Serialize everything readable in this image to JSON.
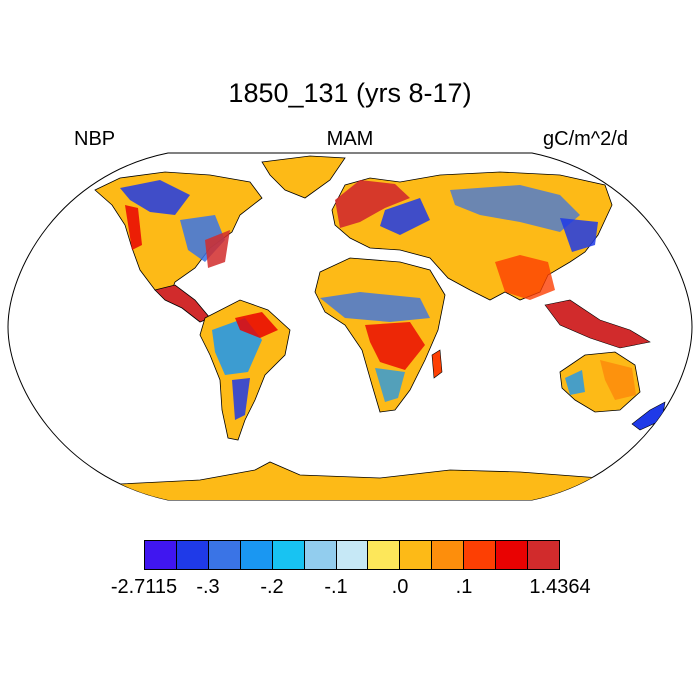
{
  "title": "1850_131 (yrs 8-17)",
  "left_label": "NBP",
  "center_label": "MAM",
  "right_label": "gC/m^2/d",
  "colorbar": {
    "colors": [
      "#4016f0",
      "#1f3ae8",
      "#3a74e6",
      "#1a97f2",
      "#18c3f2",
      "#92cdee",
      "#c6e8f6",
      "#fde75a",
      "#fdba17",
      "#fd8e0c",
      "#fd3f03",
      "#e90202",
      "#d12b2c"
    ],
    "tick_labels": [
      "-2.7115",
      "-.3",
      "-.2",
      "-.1",
      ".0",
      ".1",
      "1.4364"
    ]
  },
  "map_colors": {
    "ocean": "#ffffff",
    "coast": "#000000",
    "dominant_land": "#fdba17"
  }
}
